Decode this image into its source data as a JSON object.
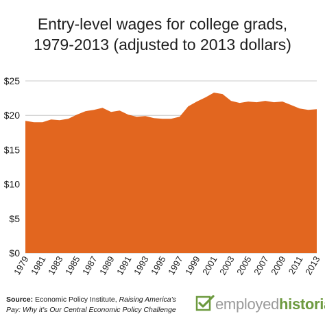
{
  "title": {
    "line1": "Entry-level wages for college grads,",
    "line2": "1979-2013 (adjusted to 2013 dollars)"
  },
  "source": {
    "label": "Source:",
    "text": "Economic Policy Institute,",
    "italic": "Raising America's Pay: Why it's Our Central Economic Policy Challenge"
  },
  "logo": {
    "icon": "checkmark-square-icon",
    "part1": "employed",
    "part2": "historian",
    "color_gray": "#9a9a9a",
    "color_green": "#6d9a3f"
  },
  "chart_data": {
    "type": "area",
    "title": "Entry-level wages for college grads, 1979-2013 (adjusted to 2013 dollars)",
    "xlabel": "",
    "ylabel": "",
    "x": [
      1979,
      1980,
      1981,
      1982,
      1983,
      1984,
      1985,
      1986,
      1987,
      1988,
      1989,
      1990,
      1991,
      1992,
      1993,
      1994,
      1995,
      1996,
      1997,
      1998,
      1999,
      2000,
      2001,
      2002,
      2003,
      2004,
      2005,
      2006,
      2007,
      2008,
      2009,
      2010,
      2011,
      2012,
      2013
    ],
    "values": [
      19.2,
      19.0,
      19.0,
      19.4,
      19.3,
      19.5,
      20.1,
      20.6,
      20.8,
      21.1,
      20.5,
      20.7,
      20.1,
      19.8,
      19.9,
      19.6,
      19.5,
      19.5,
      19.8,
      21.3,
      22.0,
      22.6,
      23.3,
      23.1,
      22.1,
      21.8,
      22.0,
      21.9,
      22.1,
      21.9,
      22.0,
      21.5,
      21.0,
      20.8,
      20.9
    ],
    "x_ticks": [
      "1979",
      "1981",
      "1983",
      "1985",
      "1987",
      "1989",
      "1991",
      "1993",
      "1995",
      "1997",
      "1999",
      "2001",
      "2003",
      "2005",
      "2007",
      "2009",
      "2011",
      "2013"
    ],
    "y_ticks": [
      "$0",
      "$5",
      "$10",
      "$15",
      "$20",
      "$25"
    ],
    "y_tick_values": [
      0,
      5,
      10,
      15,
      20,
      25
    ],
    "ylim": [
      0,
      25
    ],
    "grid": true,
    "legend": "none",
    "color": "#e2661f",
    "grid_color": "#c8c8c8"
  }
}
